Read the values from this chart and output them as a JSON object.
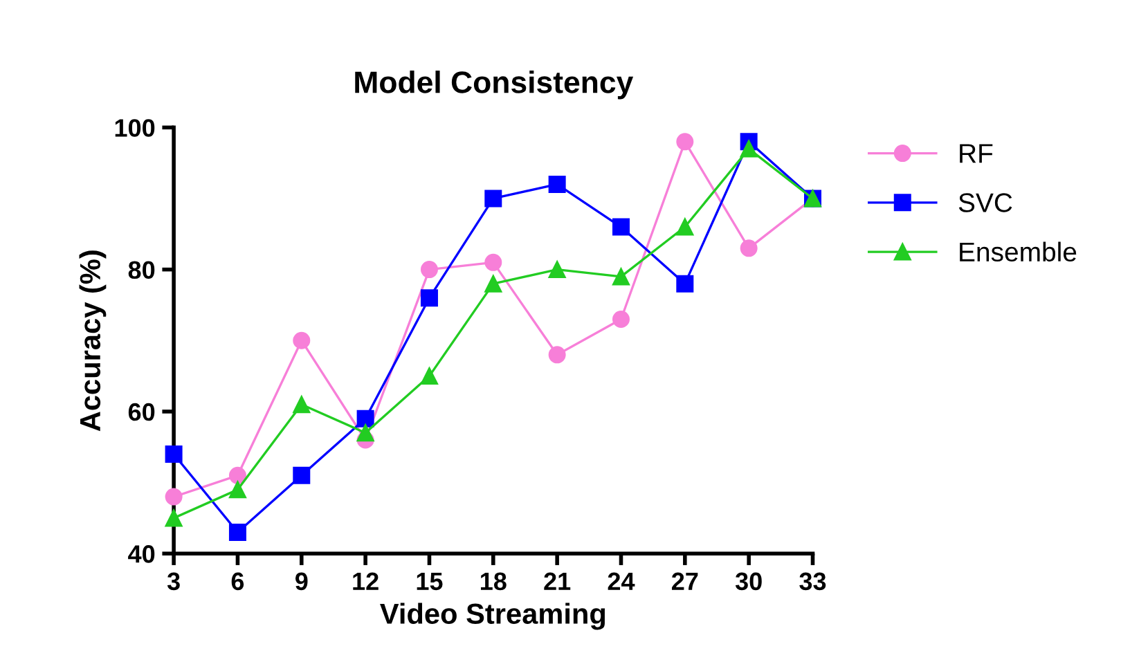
{
  "chart_data": {
    "type": "line",
    "title": "Model Consistency",
    "xlabel": "Video Streaming",
    "ylabel": "Accuracy (%)",
    "x": [
      3,
      6,
      9,
      12,
      15,
      18,
      21,
      24,
      27,
      30,
      33
    ],
    "series": [
      {
        "name": "RF",
        "color": "#f77fd8",
        "marker": "circle",
        "values": [
          48,
          51,
          70,
          56,
          80,
          81,
          68,
          73,
          98,
          83,
          90
        ]
      },
      {
        "name": "SVC",
        "color": "#0000ff",
        "marker": "square",
        "values": [
          54,
          43,
          51,
          59,
          76,
          90,
          92,
          86,
          78,
          98,
          90
        ]
      },
      {
        "name": "Ensemble",
        "color": "#22cc22",
        "marker": "triangle",
        "values": [
          45,
          49,
          61,
          57,
          65,
          78,
          80,
          79,
          86,
          97,
          90
        ]
      }
    ],
    "xlim": [
      3,
      33
    ],
    "xticks": [
      3,
      6,
      9,
      12,
      15,
      18,
      21,
      24,
      27,
      30,
      33
    ],
    "ylim": [
      40,
      100
    ],
    "yticks": [
      40,
      60,
      80,
      100
    ],
    "grid": false,
    "legend": "right",
    "line_style": "solid"
  }
}
